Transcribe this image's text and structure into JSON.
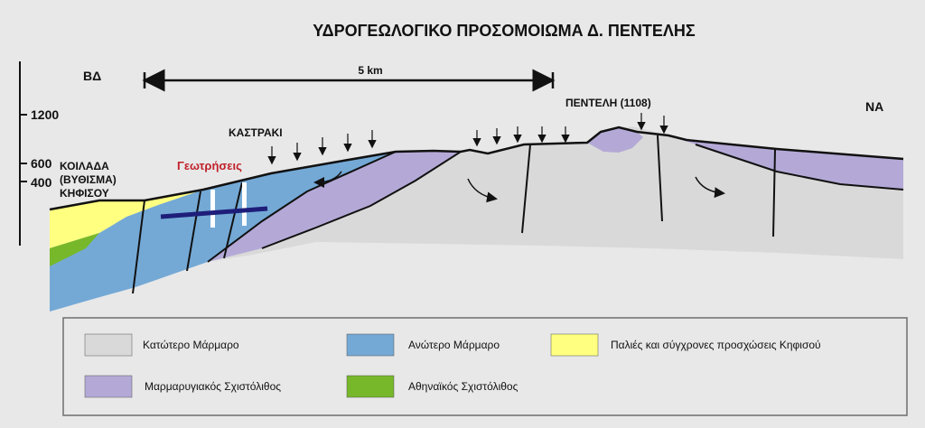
{
  "title": "ΥΔΡΟΓΕΩΛΟΓΙΚΟ ΠΡΟΣΟΜΟΙΩΜΑ Δ. ΠΕΝΤΕΛΗΣ",
  "orientation": {
    "left": "ΒΔ",
    "right": "ΝΑ"
  },
  "elevation_ticks": [
    "1200",
    "600",
    "400"
  ],
  "scale_bar": {
    "label": "5 km"
  },
  "places": {
    "valley_line1": "ΚΟΙΛΑΔΑ",
    "valley_line2": "(ΒΥΘΙΣΜΑ)",
    "valley_line3": "ΚΗΦΙΣΟΥ",
    "kastraki": "ΚΑΣΤΡΑΚΙ",
    "penteli": "ΠΕΝΤΕΛΗ (1108)",
    "boreholes": "Γεωτρήσεις"
  },
  "colors": {
    "lower_marble": "#d9d9d9",
    "upper_marble": "#74a9d6",
    "alluvium": "#ffff80",
    "mica_schist": "#b4a9d6",
    "athens_schist": "#77b82a",
    "boreholes_label": "#c0202a",
    "gallery": "#1e1e7a"
  },
  "legend": {
    "items": [
      {
        "label": "Κατώτερο Μάρμαρο",
        "color": "#d9d9d9"
      },
      {
        "label": "Ανώτερο Μάρμαρο",
        "color": "#74a9d6"
      },
      {
        "label": "Παλιές και σύγχρονες προσχώσεις Κηφισού",
        "color": "#ffff80"
      },
      {
        "label": "Μαρμαρυγιακός Σχιστόλιθος",
        "color": "#b4a9d6"
      },
      {
        "label": "Αθηναϊκός Σχιστόλιθος",
        "color": "#77b82a"
      }
    ]
  }
}
